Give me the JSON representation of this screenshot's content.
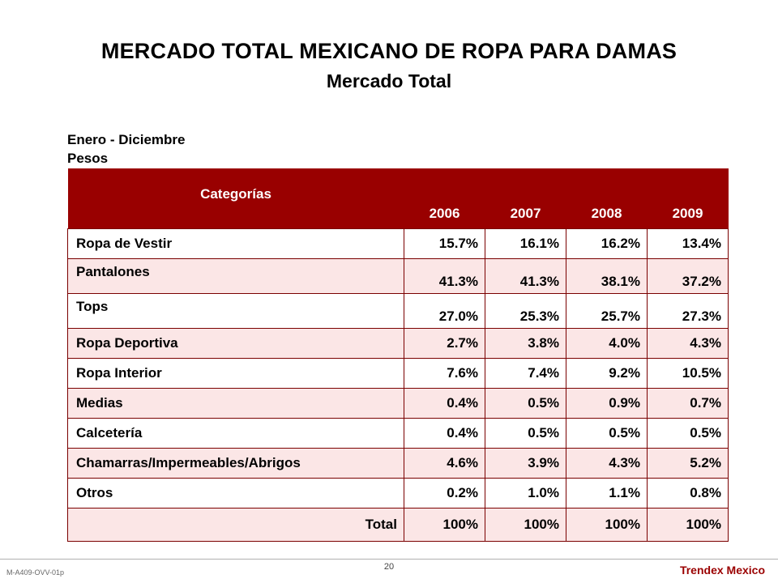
{
  "header": {
    "title": "MERCADO TOTAL MEXICANO DE ROPA PARA DAMAS",
    "subtitle": "Mercado Total"
  },
  "meta": {
    "period": "Enero - Diciembre",
    "units": "Pesos"
  },
  "table": {
    "columns": [
      "Categorías",
      "2006",
      "2007",
      "2008",
      "2009"
    ],
    "rows": [
      {
        "category": "Ropa de Vestir",
        "values": [
          "15.7%",
          "16.1%",
          "16.2%",
          "13.4%"
        ]
      },
      {
        "category": "Pantalones",
        "values": [
          "41.3%",
          "41.3%",
          "38.1%",
          "37.2%"
        ]
      },
      {
        "category": "Tops",
        "values": [
          "27.0%",
          "25.3%",
          "25.7%",
          "27.3%"
        ]
      },
      {
        "category": "Ropa Deportiva",
        "values": [
          "2.7%",
          "3.8%",
          "4.0%",
          "4.3%"
        ]
      },
      {
        "category": "Ropa Interior",
        "values": [
          "7.6%",
          "7.4%",
          "9.2%",
          "10.5%"
        ]
      },
      {
        "category": "Medias",
        "values": [
          "0.4%",
          "0.5%",
          "0.9%",
          "0.7%"
        ]
      },
      {
        "category": "Calcetería",
        "values": [
          "0.4%",
          "0.5%",
          "0.5%",
          "0.5%"
        ]
      },
      {
        "category": "Chamarras/Impermeables/Abrigos",
        "values": [
          "4.6%",
          "3.9%",
          "4.3%",
          "5.2%"
        ]
      },
      {
        "category": "Otros",
        "values": [
          "0.2%",
          "1.0%",
          "1.1%",
          "0.8%"
        ]
      }
    ],
    "total": {
      "label": "Total",
      "values": [
        "100%",
        "100%",
        "100%",
        "100%"
      ]
    }
  },
  "footer": {
    "code": "M-A409-OVV-01p",
    "page": "20",
    "brand": "Trendex Mexico"
  },
  "colors": {
    "header_bg": "#990000",
    "alt_row_bg": "#fbe6e6",
    "brand": "#9a0000"
  }
}
